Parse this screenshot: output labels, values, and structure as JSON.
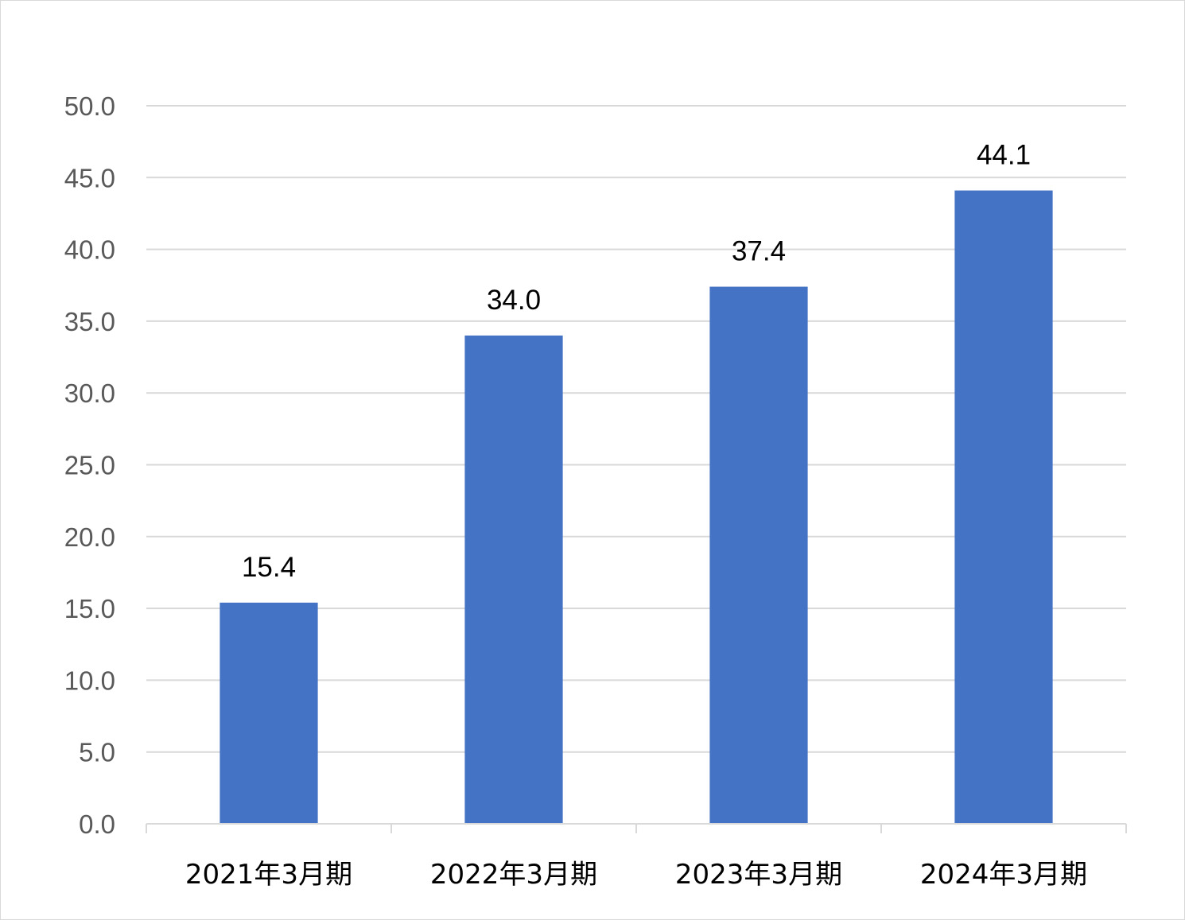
{
  "chart_data": {
    "type": "bar",
    "title": "",
    "xlabel": "",
    "ylabel": "",
    "categories": [
      "2021年3月期",
      "2022年3月期",
      "2023年3月期",
      "2024年3月期"
    ],
    "values": [
      15.4,
      34.0,
      37.4,
      44.1
    ],
    "value_labels": [
      "15.4",
      "34.0",
      "37.4",
      "44.1"
    ],
    "ylim": [
      0,
      50
    ],
    "y_ticks": [
      0,
      5,
      10,
      15,
      20,
      25,
      30,
      35,
      40,
      45,
      50
    ],
    "y_tick_labels": [
      "0.0",
      "5.0",
      "10.0",
      "15.0",
      "20.0",
      "25.0",
      "30.0",
      "35.0",
      "40.0",
      "45.0",
      "50.0"
    ],
    "grid": true,
    "legend": "none",
    "colors": {
      "bar": "#4472C4",
      "grid": "#d9d9d9",
      "axis": "#d9d9d9",
      "tick_text": "#595959",
      "label_text": "#000000"
    }
  }
}
